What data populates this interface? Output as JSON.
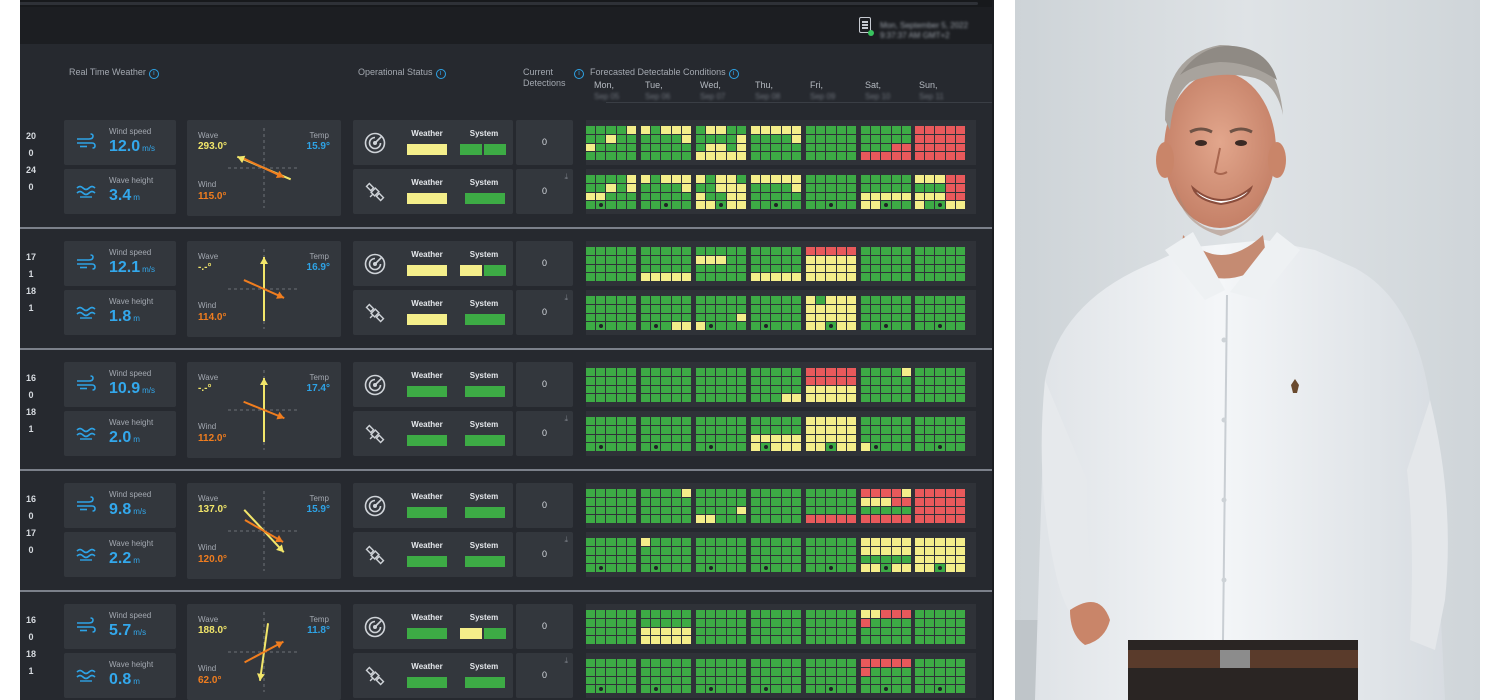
{
  "header": {
    "date_line1": "Mon, September 5, 2022",
    "date_line2": "9:37:37 AM GMT+2",
    "report_icon": "report-document-icon"
  },
  "columns": {
    "realtime": "Real Time Weather",
    "operational": "Operational Status",
    "current_line1": "Current",
    "current_line2": "Detections",
    "forecast": "Forecasted Detectable Conditions"
  },
  "days": [
    {
      "name": "Mon,",
      "date": "Sep 05"
    },
    {
      "name": "Tue,",
      "date": "Sep 06"
    },
    {
      "name": "Wed,",
      "date": "Sep 07"
    },
    {
      "name": "Thu,",
      "date": "Sep 08"
    },
    {
      "name": "Fri,",
      "date": "Sep 09"
    },
    {
      "name": "Sat,",
      "date": "Sep 10"
    },
    {
      "name": "Sun,",
      "date": "Sep 11"
    }
  ],
  "labels": {
    "wind_speed": "Wind speed",
    "wave_height": "Wave height",
    "wave": "Wave",
    "wind": "Wind",
    "temp": "Temp",
    "weather": "Weather",
    "system": "System",
    "unit_ms": "m/s",
    "unit_m": "m"
  },
  "colors": {
    "green": "#3dab45",
    "yellow": "#f4ee8a",
    "red": "#e8595b",
    "wave_yellow": "#f2e66a",
    "wind_orange": "#f07d1f",
    "accent_blue": "#2ea3e6"
  },
  "stations": [
    {
      "left": [
        "20",
        "0",
        "24",
        "0"
      ],
      "wind_speed": "12.0",
      "wave_height": "3.4",
      "wave": "293.0°",
      "wind": "115.0°",
      "temp": "15.9°",
      "wave_dir": 293,
      "wind_dir": 115,
      "op": [
        [
          "Y",
          "GG"
        ],
        [
          "Y",
          "G"
        ]
      ],
      "detections": [
        "0",
        "0"
      ],
      "forecast": [
        [
          "GGGGY|GGYGG|YGGGG|GGGGG",
          "YGYYY|GGGGY|GGGGG|GGGGG",
          "GYYGG|GGGGY|GYYGY|YYYYY",
          "YYYYY|GGGGY|GGGGG|GGGGG",
          "GGGGG|GGGGG|GGGGG|GGGGG",
          "GGGGG|GGGGG|GGGRR|RRRRR",
          "RRRRR|RRRRR|RRRRR|RRRRR"
        ],
        [
          "GGGGY|GGYGY|YYGGG|GDGGG",
          "YGYYY|GGGGY|GGGGG|GGDGG",
          "YGYYG|GGYYY|YGGYY|YYDYY",
          "YYYYY|GGGGY|GGGGG|GGDGG",
          "GGGGG|GGGGG|GGGGG|GGDGG",
          "GGGGG|GGGGG|YYYYY|YYDGG",
          "YYYRR|GGGRR|YYYRR|YGDYY"
        ]
      ]
    },
    {
      "left": [
        "17",
        "1",
        "18",
        "1"
      ],
      "wind_speed": "12.1",
      "wave_height": "1.8",
      "wave": "-.-°",
      "wind": "114.0°",
      "temp": "16.9°",
      "wave_dir": null,
      "wind_dir": 114,
      "op": [
        [
          "Y",
          "YG"
        ],
        [
          "Y",
          "G"
        ]
      ],
      "detections": [
        "0",
        "0"
      ],
      "forecast": [
        [
          "GGGGG|GGGGG|GGGGG|GGGGG",
          "GGGGG|GGGGG|GGGGG|YYYYY",
          "GGGGG|YYYGG|GGGGG|GGGGG",
          "GGGGG|GGGGG|GGGGG|YYYYY",
          "RRRRR|YYYYY|YYYYY|YYYYY",
          "GGGGG|GGGGG|GGGGG|GGGGG",
          "GGGGG|GGGGG|GGGGG|GGGGG"
        ],
        [
          "GGGGG|GGGGG|GGGGG|GDGGG",
          "GGGGG|GGGGG|GGGGG|GDGYY",
          "GGGGG|GGGGG|GGGGY|YDGGG",
          "GGGGG|GGGGG|GGGGG|GDGGG",
          "YGYYY|YYYYY|YYYYY|YYDYY",
          "GGGGG|GGGGG|GGGGG|GGDGG",
          "GGGGG|GGGGG|GGGGG|GGDGG"
        ]
      ]
    },
    {
      "left": [
        "16",
        "0",
        "18",
        "1"
      ],
      "wind_speed": "10.9",
      "wave_height": "2.0",
      "wave": "-.-°",
      "wind": "112.0°",
      "temp": "17.4°",
      "wave_dir": null,
      "wind_dir": 112,
      "op": [
        [
          "G",
          "G"
        ],
        [
          "G",
          "G"
        ]
      ],
      "detections": [
        "0",
        "0"
      ],
      "forecast": [
        [
          "GGGGG|GGGGG|GGGGG|GGGGG",
          "GGGGG|GGGGG|GGGGG|GGGGG",
          "GGGGG|GGGGG|GGGGG|GGGGG",
          "GGGGG|GGGGG|GGGGG|GGGYY",
          "RRRRR|RRRRR|YYYYY|YYYYY",
          "GGGGY|GGGGG|GGGGG|GGGGG",
          "GGGGG|GGGGG|GGGGG|GGGGG"
        ],
        [
          "GGGGG|GGGGG|GGGGG|GDGGG",
          "GGGGG|GGGGG|GGGGG|GDGGG",
          "GGGGG|GGGGG|GGGGG|GDGGG",
          "GGGGG|GGGGG|YYYYY|YDYYY",
          "YYYYY|YYYYY|YYYYY|YYDYY",
          "GGGGG|GGGGG|GGGGG|YDGGG",
          "GGGGG|GGGGG|GGGGG|GGDGG"
        ]
      ]
    },
    {
      "left": [
        "16",
        "0",
        "17",
        "0"
      ],
      "wind_speed": "9.8",
      "wave_height": "2.2",
      "wave": "137.0°",
      "wind": "120.0°",
      "temp": "15.9°",
      "wave_dir": 137,
      "wind_dir": 120,
      "op": [
        [
          "G",
          "G"
        ],
        [
          "G",
          "G"
        ]
      ],
      "detections": [
        "0",
        "0"
      ],
      "forecast": [
        [
          "GGGGG|GGGGG|GGGGG|GGGGG",
          "GGGGY|GGGGG|GGGGG|GGGGG",
          "GGGGG|GGGGG|GGGGY|YYGGG",
          "GGGGG|GGGGG|GGGGG|GGGGG",
          "GGGGG|GGGGG|GGGGG|RRRRR",
          "RRRRY|YYYRR|GGGGG|RRRRR",
          "RRRRR|RRRRR|RRRRR|RRRRR"
        ],
        [
          "GGGGG|GGGGG|GGGGG|GDGGG",
          "YGGGG|GGGGG|GGGGG|GDGGG",
          "GGGGG|GGGGG|GGGGG|GDGGG",
          "GGGGG|GGGGG|GGGGG|GDGGG",
          "GGGGG|GGGGG|GGGGG|GGDGG",
          "YYYYY|YYYYY|GGGGG|YYDYY",
          "YYYYY|YYYYY|YYYYY|YYDYY"
        ]
      ]
    },
    {
      "left": [
        "16",
        "0",
        "18",
        "1"
      ],
      "wind_speed": "5.7",
      "wave_height": "0.8",
      "wave": "188.0°",
      "wind": "62.0°",
      "temp": "11.8°",
      "wave_dir": 188,
      "wind_dir": 62,
      "op": [
        [
          "G",
          "YG"
        ],
        [
          "G",
          "G"
        ]
      ],
      "detections": [
        "0",
        "0"
      ],
      "forecast": [
        [
          "GGGGG|GGGGG|GGGGG|GGGGG",
          "GGGGG|GGGGG|YYYYY|YYYYY",
          "GGGGG|GGGGG|GGGGG|GGGGG",
          "GGGGG|GGGGG|GGGGG|GGGGG",
          "GGGGG|GGGGG|GGGGG|GGGGG",
          "YYRRR|RGGGG|GGGGG|GGGGG",
          "GGGGG|GGGGG|GGGGG|GGGGG"
        ],
        [
          "GGGGG|GGGGG|GGGGG|GDGGG",
          "GGGGG|GGGGG|GGGGG|GDGGG",
          "GGGGG|GGGGG|GGGGG|GDGGG",
          "GGGGG|GGGGG|GGGGG|GDGGG",
          "GGGGG|GGGGG|GGGGG|GGDGG",
          "RRRRR|RGGGG|GGGGG|GGDGG",
          "GGGGG|GGGGG|GGGGG|GGDGG"
        ]
      ]
    }
  ],
  "photo": {
    "shirt_logo": "polo-logo"
  }
}
